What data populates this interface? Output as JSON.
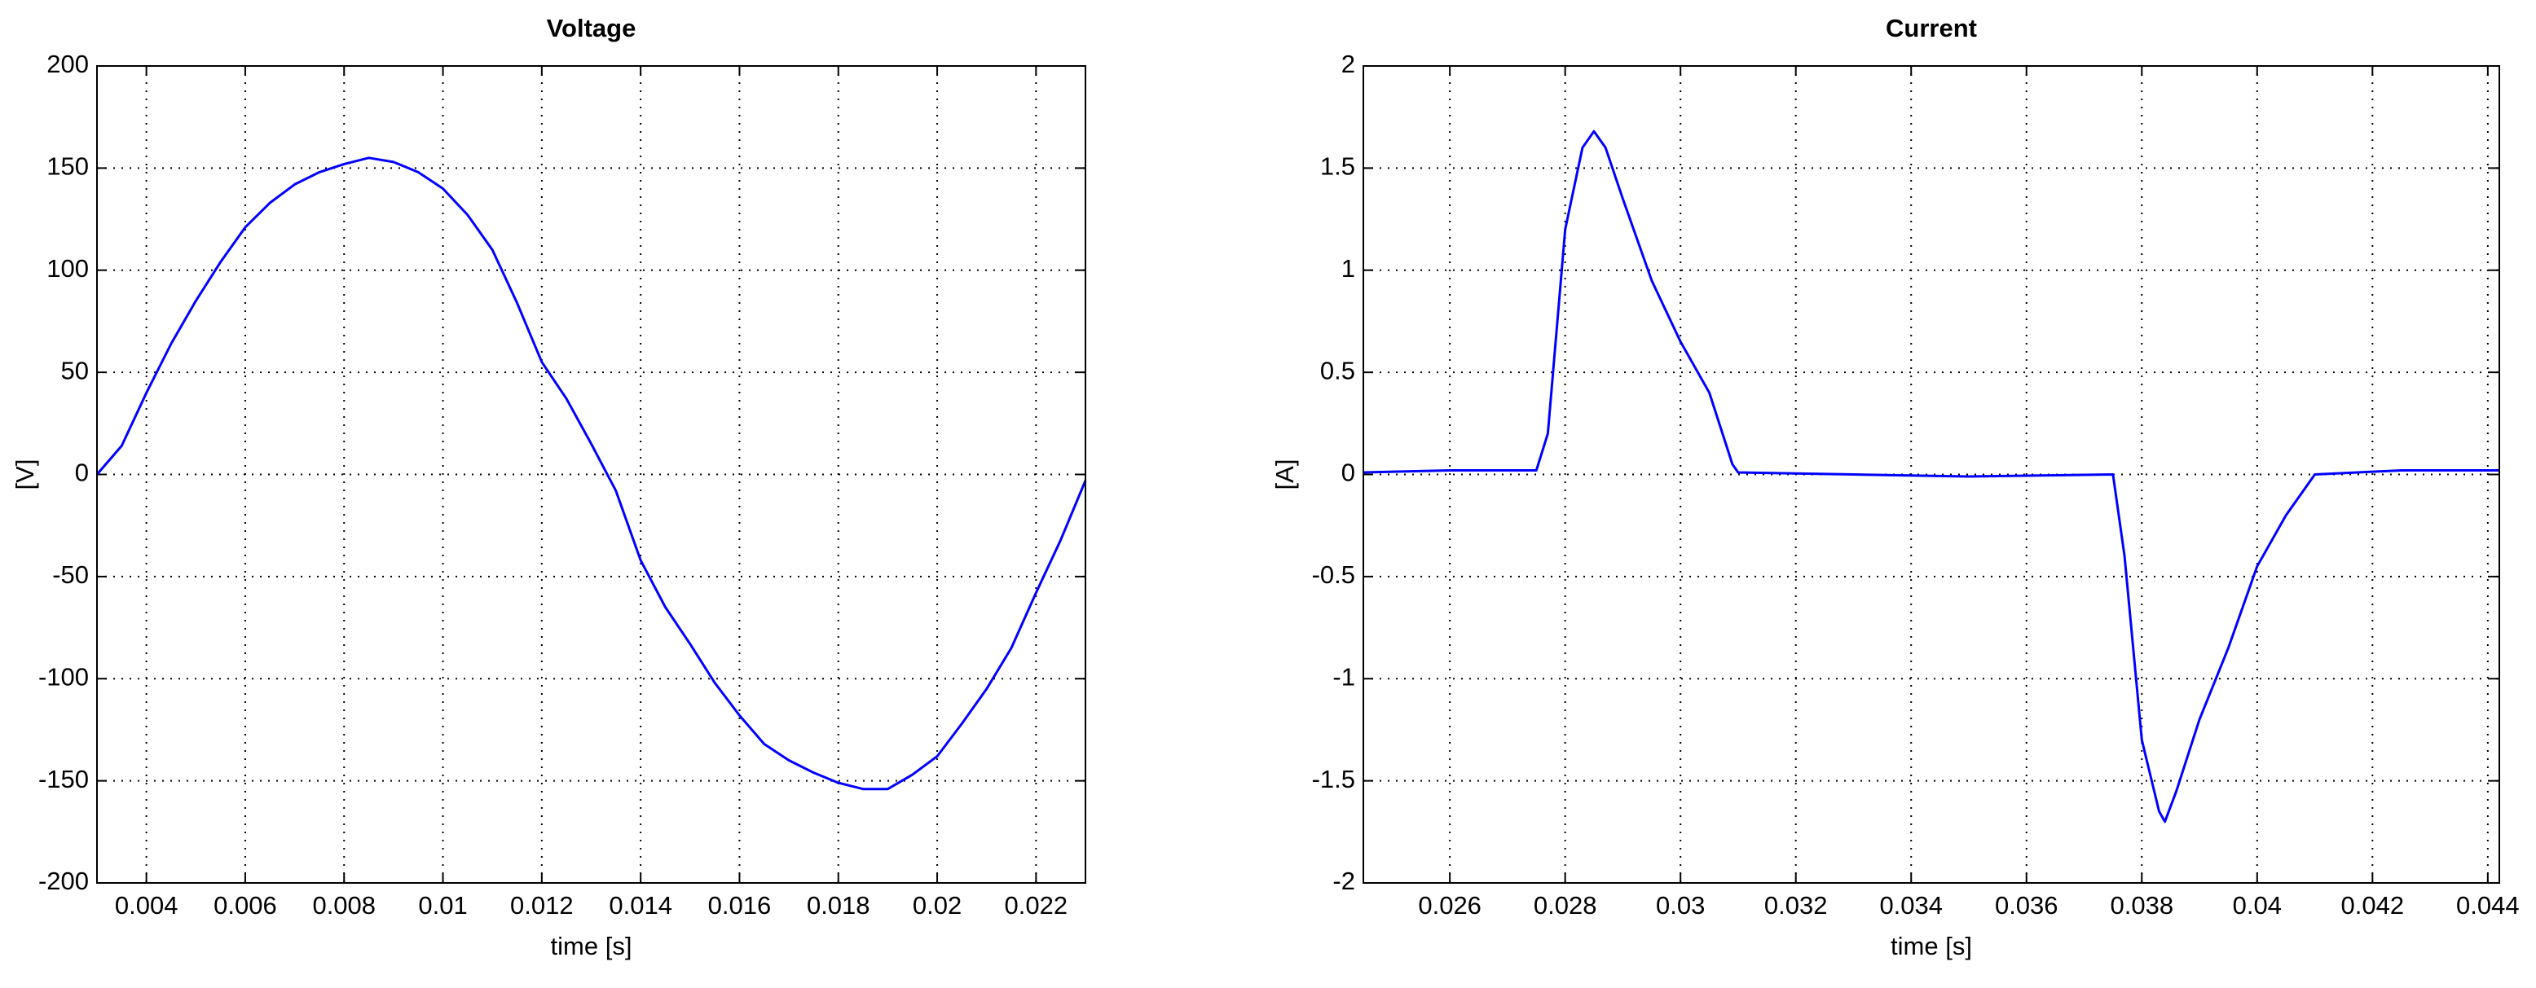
{
  "chart_data": [
    {
      "type": "line",
      "title": "Voltage",
      "xlabel": "time [s]",
      "ylabel": "[V]",
      "x": [
        0.003,
        0.0035,
        0.004,
        0.0045,
        0.005,
        0.0055,
        0.006,
        0.0065,
        0.007,
        0.0075,
        0.008,
        0.0085,
        0.009,
        0.0095,
        0.01,
        0.0105,
        0.011,
        0.0115,
        0.012,
        0.0125,
        0.013,
        0.0135,
        0.014,
        0.0145,
        0.015,
        0.0155,
        0.016,
        0.0165,
        0.017,
        0.0175,
        0.018,
        0.0185,
        0.019,
        0.0195,
        0.02,
        0.0205,
        0.021,
        0.0215,
        0.022,
        0.0225,
        0.023
      ],
      "series": [
        {
          "color": "#0000ff",
          "values": [
            0,
            14,
            40,
            64,
            85,
            104,
            121,
            133,
            142,
            148,
            152,
            155,
            153,
            148,
            140,
            127,
            110,
            84,
            55,
            37,
            15,
            -8,
            -42,
            -65,
            -83,
            -102,
            -118,
            -132,
            -140,
            -146,
            -151,
            -154,
            -154,
            -147,
            -138,
            -122,
            -105,
            -85,
            -58,
            -32,
            -3
          ]
        }
      ],
      "xlim": [
        0.003,
        0.023
      ],
      "xticks": [
        0.004,
        0.006,
        0.008,
        0.01,
        0.012,
        0.014,
        0.016,
        0.018,
        0.02,
        0.022
      ],
      "ylim": [
        -200,
        200
      ],
      "yticks": [
        -200,
        -150,
        -100,
        -50,
        0,
        50,
        100,
        150,
        200
      ],
      "grid": true
    },
    {
      "type": "line",
      "title": "Current",
      "xlabel": "time [s]",
      "ylabel": "[A]",
      "x": [
        0.0245,
        0.026,
        0.0275,
        0.0277,
        0.028,
        0.0283,
        0.0285,
        0.0287,
        0.029,
        0.0295,
        0.03,
        0.0305,
        0.0309,
        0.031,
        0.033,
        0.035,
        0.0375,
        0.0377,
        0.038,
        0.0383,
        0.0384,
        0.0386,
        0.039,
        0.0395,
        0.04,
        0.0405,
        0.041,
        0.0425,
        0.0442
      ],
      "series": [
        {
          "color": "#0000ff",
          "values": [
            0.01,
            0.02,
            0.02,
            0.2,
            1.2,
            1.6,
            1.68,
            1.6,
            1.35,
            0.95,
            0.65,
            0.4,
            0.05,
            0.01,
            0,
            -0.01,
            0,
            -0.4,
            -1.3,
            -1.65,
            -1.7,
            -1.55,
            -1.2,
            -0.85,
            -0.45,
            -0.2,
            0,
            0.02,
            0.02
          ]
        }
      ],
      "xlim": [
        0.0245,
        0.0442
      ],
      "xticks": [
        0.026,
        0.028,
        0.03,
        0.032,
        0.034,
        0.036,
        0.038,
        0.04,
        0.042,
        0.044
      ],
      "ylim": [
        -2,
        2
      ],
      "yticks": [
        -2,
        -1.5,
        -1,
        -0.5,
        0,
        0.5,
        1,
        1.5,
        2
      ],
      "grid": true
    }
  ]
}
